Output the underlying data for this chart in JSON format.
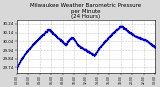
{
  "title": "Milwaukee Weather Barometric Pressure\nper Minute\n(24 Hours)",
  "title_fontsize": 4.0,
  "bg_color": "#d8d8d8",
  "plot_bg_color": "#ffffff",
  "dot_color": "#0000cc",
  "dot_size": 0.8,
  "ylim": [
    29.68,
    30.28
  ],
  "ytick_labels": [
    "29.74",
    "29.84",
    "29.94",
    "30.04",
    "30.14",
    "30.24"
  ],
  "ytick_vals": [
    29.74,
    29.84,
    29.94,
    30.04,
    30.14,
    30.24
  ],
  "grid_color": "#999999",
  "grid_style": ":",
  "num_points": 1440,
  "noise_std": 0.005
}
